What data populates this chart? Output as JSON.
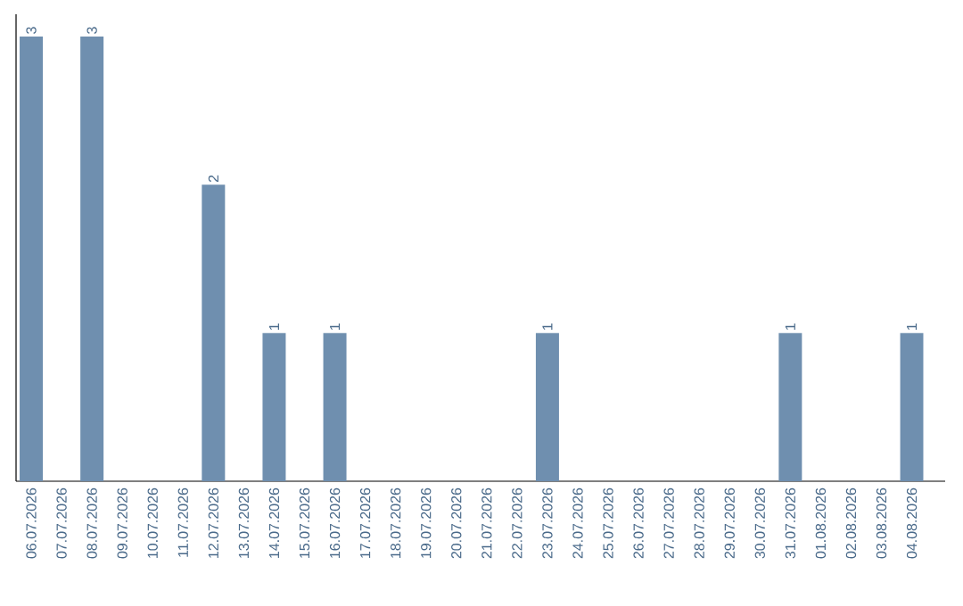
{
  "chart_data": {
    "type": "bar",
    "categories": [
      "06.07.2026",
      "07.07.2026",
      "08.07.2026",
      "09.07.2026",
      "10.07.2026",
      "11.07.2026",
      "12.07.2026",
      "13.07.2026",
      "14.07.2026",
      "15.07.2026",
      "16.07.2026",
      "17.07.2026",
      "18.07.2026",
      "19.07.2026",
      "20.07.2026",
      "21.07.2026",
      "22.07.2026",
      "23.07.2026",
      "24.07.2026",
      "25.07.2026",
      "26.07.2026",
      "27.07.2026",
      "28.07.2026",
      "29.07.2026",
      "30.07.2026",
      "31.07.2026",
      "01.08.2026",
      "02.08.2026",
      "03.08.2026",
      "04.08.2026"
    ],
    "values": [
      3,
      0,
      3,
      0,
      0,
      0,
      2,
      0,
      1,
      0,
      1,
      0,
      0,
      0,
      0,
      0,
      0,
      1,
      0,
      0,
      0,
      0,
      0,
      0,
      0,
      1,
      0,
      0,
      0,
      1
    ],
    "value_labels": [
      "3",
      null,
      "3",
      null,
      null,
      null,
      "2",
      null,
      "1",
      null,
      "1",
      null,
      null,
      null,
      null,
      null,
      null,
      "1",
      null,
      null,
      null,
      null,
      null,
      null,
      null,
      "1",
      null,
      null,
      null,
      "1"
    ],
    "color": "#6f8faf",
    "tick_labels": "x"
  }
}
